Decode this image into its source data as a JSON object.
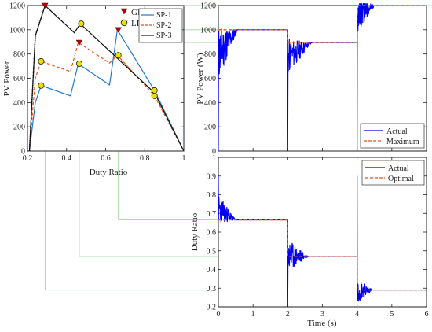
{
  "chart_data": [
    {
      "type": "line",
      "title": "",
      "xlabel": "Duty Ratio",
      "ylabel": "PV Power",
      "xlim": [
        0.2,
        1
      ],
      "ylim": [
        0,
        1200
      ],
      "xticks": [
        "0.2",
        "0.4",
        "0.6",
        "0.8",
        "1"
      ],
      "yticks": [
        "0",
        "200",
        "400",
        "600",
        "800",
        "1000",
        "1200"
      ],
      "grid": false,
      "legend_markers": [
        {
          "name": "GP",
          "color": "#c00000",
          "marker": "triangle"
        },
        {
          "name": "LP",
          "color": "#e8e000",
          "marker": "circle"
        }
      ],
      "series": [
        {
          "name": "SP-1",
          "color": "#1f77d4",
          "dash": "solid",
          "x": [
            0.21,
            0.24,
            0.27,
            0.42,
            0.46,
            0.62,
            0.66,
            0.85,
            1.0
          ],
          "y": [
            0,
            400,
            540,
            455,
            720,
            545,
            1000,
            500,
            0
          ]
        },
        {
          "name": "SP-2",
          "color": "#e8501c",
          "dash": "dash",
          "x": [
            0.21,
            0.24,
            0.27,
            0.42,
            0.46,
            0.62,
            0.66,
            0.85,
            1.0
          ],
          "y": [
            0,
            600,
            740,
            655,
            895,
            725,
            790,
            455,
            0
          ]
        },
        {
          "name": "SP-3",
          "color": "#111111",
          "dash": "solid",
          "x": [
            0.21,
            0.24,
            0.29,
            0.44,
            0.47,
            0.85,
            1.0
          ],
          "y": [
            0,
            950,
            1200,
            975,
            1050,
            480,
            0
          ]
        }
      ],
      "gp_points": [
        {
          "x": 0.29,
          "y": 1200
        },
        {
          "x": 0.465,
          "y": 895
        },
        {
          "x": 0.665,
          "y": 1000
        }
      ],
      "lp_points": [
        {
          "x": 0.27,
          "y": 540
        },
        {
          "x": 0.27,
          "y": 740
        },
        {
          "x": 0.465,
          "y": 720
        },
        {
          "x": 0.475,
          "y": 1050
        },
        {
          "x": 0.665,
          "y": 790
        },
        {
          "x": 0.85,
          "y": 500
        },
        {
          "x": 0.85,
          "y": 455
        }
      ]
    },
    {
      "type": "line",
      "title": "",
      "xlabel": "",
      "ylabel": "PV Power (W)",
      "xlim": [
        0,
        6
      ],
      "ylim": [
        0,
        1200
      ],
      "yticks": [
        "0",
        "200",
        "400",
        "600",
        "800",
        "1000",
        "1200"
      ],
      "legend_position": "bottom-right",
      "series": [
        {
          "name": "Actual",
          "color": "#0000ee",
          "dash": "solid"
        },
        {
          "name": "Maximum",
          "color": "#e8501c",
          "dash": "dash",
          "x": [
            0,
            2,
            2,
            4,
            4,
            6
          ],
          "y": [
            1000,
            1000,
            895,
            895,
            1200,
            1200
          ]
        }
      ]
    },
    {
      "type": "line",
      "title": "",
      "xlabel": "Time (s)",
      "ylabel": "Duty Ratio",
      "xlim": [
        0,
        6
      ],
      "ylim": [
        0.2,
        1
      ],
      "xticks": [
        "0",
        "1",
        "2",
        "3",
        "4",
        "5",
        "6"
      ],
      "yticks": [
        "0.2",
        "0.3",
        "0.4",
        "0.5",
        "0.6",
        "0.7",
        "0.8",
        "0.9",
        "1"
      ],
      "legend_position": "top-right",
      "series": [
        {
          "name": "Actual",
          "color": "#0000ee",
          "dash": "solid"
        },
        {
          "name": "Optimal",
          "color": "#e8501c",
          "dash": "dash",
          "x": [
            0,
            2,
            2,
            4,
            4,
            6
          ],
          "y": [
            0.665,
            0.665,
            0.47,
            0.47,
            0.29,
            0.29
          ]
        }
      ]
    }
  ]
}
